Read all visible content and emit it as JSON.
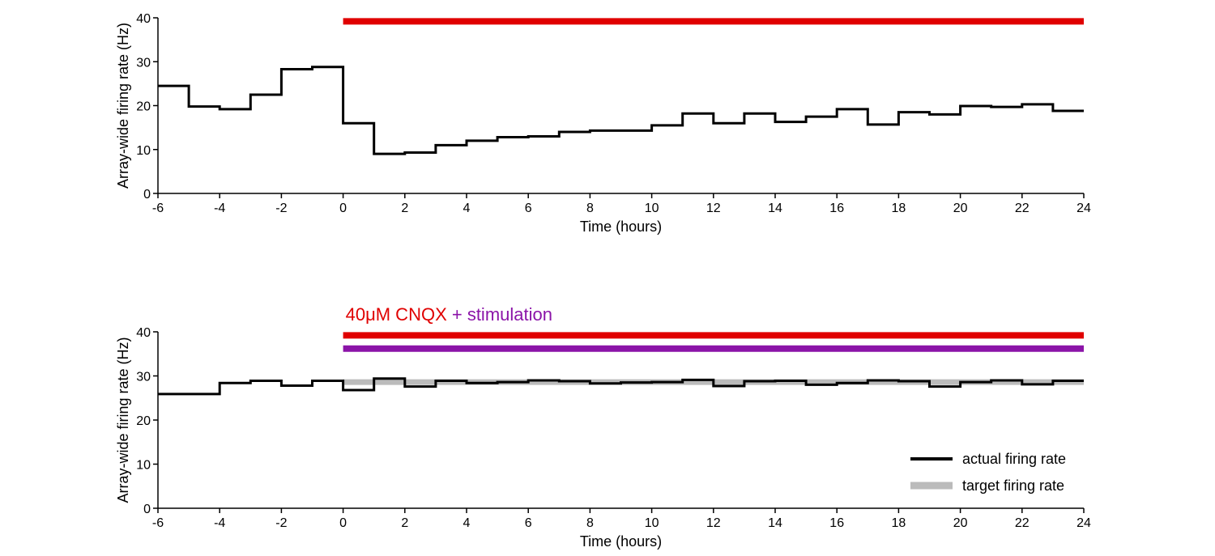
{
  "chart_data": [
    {
      "type": "line",
      "step": true,
      "title": "",
      "xlabel": "Time (hours)",
      "ylabel": "Array-wide firing rate (Hz)",
      "xlim": [
        -6,
        24
      ],
      "ylim": [
        0,
        40
      ],
      "xticks": [
        "-6",
        "-4",
        "-2",
        "0",
        "2",
        "4",
        "6",
        "8",
        "10",
        "12",
        "14",
        "16",
        "18",
        "20",
        "22",
        "24"
      ],
      "yticks": [
        "0",
        "10",
        "20",
        "30",
        "40"
      ],
      "grid": false,
      "treatment_bars": [
        {
          "start": 0,
          "end": 24,
          "level": 39.2,
          "color": "#e00000"
        }
      ],
      "series": [
        {
          "color": "#000000",
          "x": [
            -6,
            -5,
            -4,
            -3,
            -2,
            -1,
            0,
            1,
            2,
            3,
            4,
            5,
            6,
            7,
            8,
            9,
            10,
            11,
            12,
            13,
            14,
            15,
            16,
            17,
            18,
            19,
            20,
            21,
            22,
            23
          ],
          "values": [
            24.5,
            19.8,
            19.2,
            22.5,
            28.3,
            28.8,
            16.0,
            9.0,
            9.3,
            11.0,
            12.0,
            12.8,
            13.0,
            14.0,
            14.3,
            14.3,
            15.5,
            18.2,
            16.0,
            18.2,
            16.3,
            17.5,
            19.2,
            15.7,
            18.5,
            18.0,
            19.9,
            19.7,
            20.3,
            18.8
          ]
        }
      ]
    },
    {
      "type": "line",
      "step": true,
      "title": "",
      "xlabel": "Time (hours)",
      "ylabel": "Array-wide firing rate (Hz)",
      "xlim": [
        -6,
        24
      ],
      "ylim": [
        0,
        40
      ],
      "xticks": [
        "-6",
        "-4",
        "-2",
        "0",
        "2",
        "4",
        "6",
        "8",
        "10",
        "12",
        "14",
        "16",
        "18",
        "20",
        "22",
        "24"
      ],
      "yticks": [
        "0",
        "10",
        "20",
        "30",
        "40"
      ],
      "grid": false,
      "annotation": {
        "part1": "40μM CNQX",
        "part2": " + stimulation",
        "color1": "#e00000",
        "color2": "#8b14a8"
      },
      "treatment_bars": [
        {
          "start": 0,
          "end": 24,
          "level": 39.2,
          "color": "#e00000"
        },
        {
          "start": 0,
          "end": 24,
          "level": 36.2,
          "color": "#8b14a8"
        }
      ],
      "legend": {
        "position": "bottom-right"
      },
      "series": [
        {
          "name": "actual firing rate",
          "color": "#000000",
          "x": [
            -6,
            -5,
            -4,
            -3,
            -2,
            -1,
            0,
            1,
            2,
            3,
            4,
            5,
            6,
            7,
            8,
            9,
            10,
            11,
            12,
            13,
            14,
            15,
            16,
            17,
            18,
            19,
            20,
            21,
            22,
            23
          ],
          "values": [
            25.9,
            25.9,
            28.4,
            28.9,
            27.8,
            28.9,
            26.8,
            29.4,
            27.6,
            28.9,
            28.4,
            28.6,
            29.0,
            28.8,
            28.3,
            28.5,
            28.6,
            29.1,
            27.7,
            28.8,
            28.9,
            28.0,
            28.4,
            29.0,
            28.8,
            27.6,
            28.6,
            29.0,
            28.1,
            28.9
          ]
        },
        {
          "name": "target firing rate",
          "color": "#bbbbbb",
          "x": [
            0,
            24
          ],
          "values": [
            28.6,
            28.6
          ]
        }
      ]
    }
  ]
}
